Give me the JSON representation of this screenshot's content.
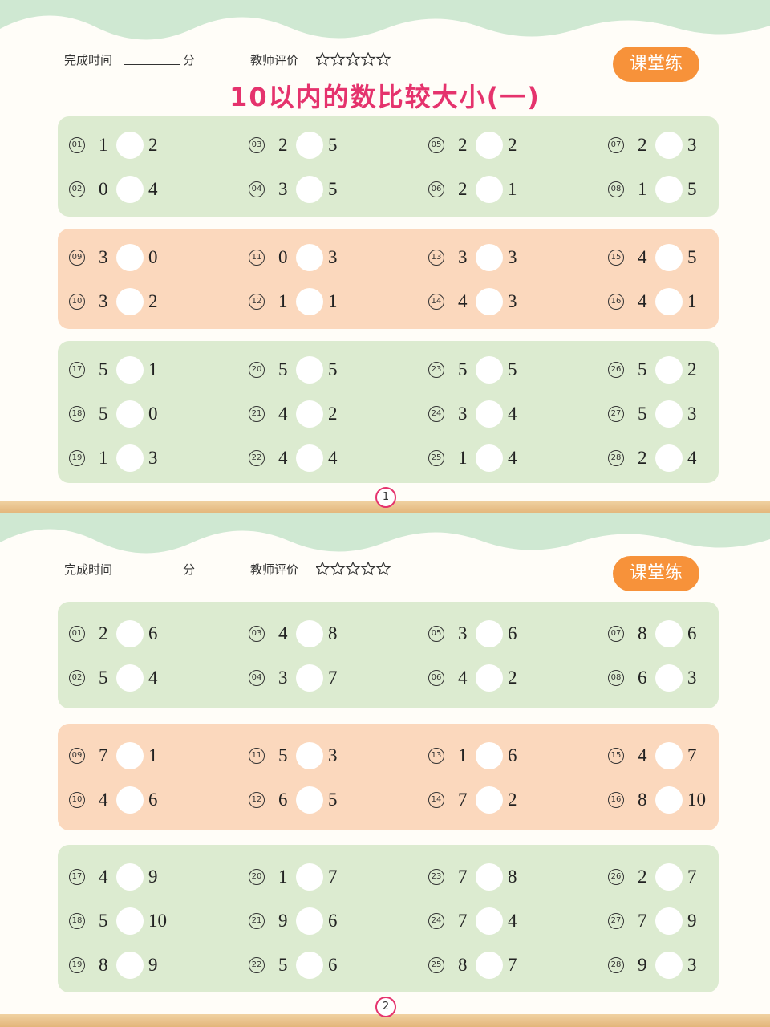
{
  "pages": [
    {
      "header": {
        "time_label": "完成时间",
        "time_unit": "分",
        "rating_label": "教师评价",
        "badge": "课堂练"
      },
      "title": "10以内的数比较大小(一)",
      "sections": [
        {
          "problems": [
            {
              "no": "01",
              "a": 1,
              "b": 2
            },
            {
              "no": "02",
              "a": 0,
              "b": 4
            },
            {
              "no": "03",
              "a": 2,
              "b": 5
            },
            {
              "no": "04",
              "a": 3,
              "b": 5
            },
            {
              "no": "05",
              "a": 2,
              "b": 2
            },
            {
              "no": "06",
              "a": 2,
              "b": 1
            },
            {
              "no": "07",
              "a": 2,
              "b": 3
            },
            {
              "no": "08",
              "a": 1,
              "b": 5
            }
          ]
        },
        {
          "problems": [
            {
              "no": "09",
              "a": 3,
              "b": 0
            },
            {
              "no": "10",
              "a": 3,
              "b": 2
            },
            {
              "no": "11",
              "a": 0,
              "b": 3
            },
            {
              "no": "12",
              "a": 1,
              "b": 1
            },
            {
              "no": "13",
              "a": 3,
              "b": 3
            },
            {
              "no": "14",
              "a": 4,
              "b": 3
            },
            {
              "no": "15",
              "a": 4,
              "b": 5
            },
            {
              "no": "16",
              "a": 4,
              "b": 1
            }
          ]
        },
        {
          "problems": [
            {
              "no": "17",
              "a": 5,
              "b": 1
            },
            {
              "no": "18",
              "a": 5,
              "b": 0
            },
            {
              "no": "19",
              "a": 1,
              "b": 3
            },
            {
              "no": "20",
              "a": 5,
              "b": 5
            },
            {
              "no": "21",
              "a": 4,
              "b": 2
            },
            {
              "no": "22",
              "a": 4,
              "b": 4
            },
            {
              "no": "23",
              "a": 5,
              "b": 5
            },
            {
              "no": "24",
              "a": 3,
              "b": 4
            },
            {
              "no": "25",
              "a": 1,
              "b": 4
            },
            {
              "no": "26",
              "a": 5,
              "b": 2
            },
            {
              "no": "27",
              "a": 5,
              "b": 3
            },
            {
              "no": "28",
              "a": 2,
              "b": 4
            }
          ]
        }
      ],
      "page_number": "1"
    },
    {
      "header": {
        "time_label": "完成时间",
        "time_unit": "分",
        "rating_label": "教师评价",
        "badge": "课堂练"
      },
      "sections": [
        {
          "problems": [
            {
              "no": "01",
              "a": 2,
              "b": 6
            },
            {
              "no": "02",
              "a": 5,
              "b": 4
            },
            {
              "no": "03",
              "a": 4,
              "b": 8
            },
            {
              "no": "04",
              "a": 3,
              "b": 7
            },
            {
              "no": "05",
              "a": 3,
              "b": 6
            },
            {
              "no": "06",
              "a": 4,
              "b": 2
            },
            {
              "no": "07",
              "a": 8,
              "b": 6
            },
            {
              "no": "08",
              "a": 6,
              "b": 3
            }
          ]
        },
        {
          "problems": [
            {
              "no": "09",
              "a": 7,
              "b": 1
            },
            {
              "no": "10",
              "a": 4,
              "b": 6
            },
            {
              "no": "11",
              "a": 5,
              "b": 3
            },
            {
              "no": "12",
              "a": 6,
              "b": 5
            },
            {
              "no": "13",
              "a": 1,
              "b": 6
            },
            {
              "no": "14",
              "a": 7,
              "b": 2
            },
            {
              "no": "15",
              "a": 4,
              "b": 7
            },
            {
              "no": "16",
              "a": 8,
              "b": 10
            }
          ]
        },
        {
          "problems": [
            {
              "no": "17",
              "a": 4,
              "b": 9
            },
            {
              "no": "18",
              "a": 5,
              "b": 10
            },
            {
              "no": "19",
              "a": 8,
              "b": 9
            },
            {
              "no": "20",
              "a": 1,
              "b": 7
            },
            {
              "no": "21",
              "a": 9,
              "b": 6
            },
            {
              "no": "22",
              "a": 5,
              "b": 6
            },
            {
              "no": "23",
              "a": 7,
              "b": 8
            },
            {
              "no": "24",
              "a": 7,
              "b": 4
            },
            {
              "no": "25",
              "a": 8,
              "b": 7
            },
            {
              "no": "26",
              "a": 2,
              "b": 7
            },
            {
              "no": "27",
              "a": 7,
              "b": 9
            },
            {
              "no": "28",
              "a": 9,
              "b": 3
            }
          ]
        }
      ],
      "page_number": "2"
    }
  ]
}
